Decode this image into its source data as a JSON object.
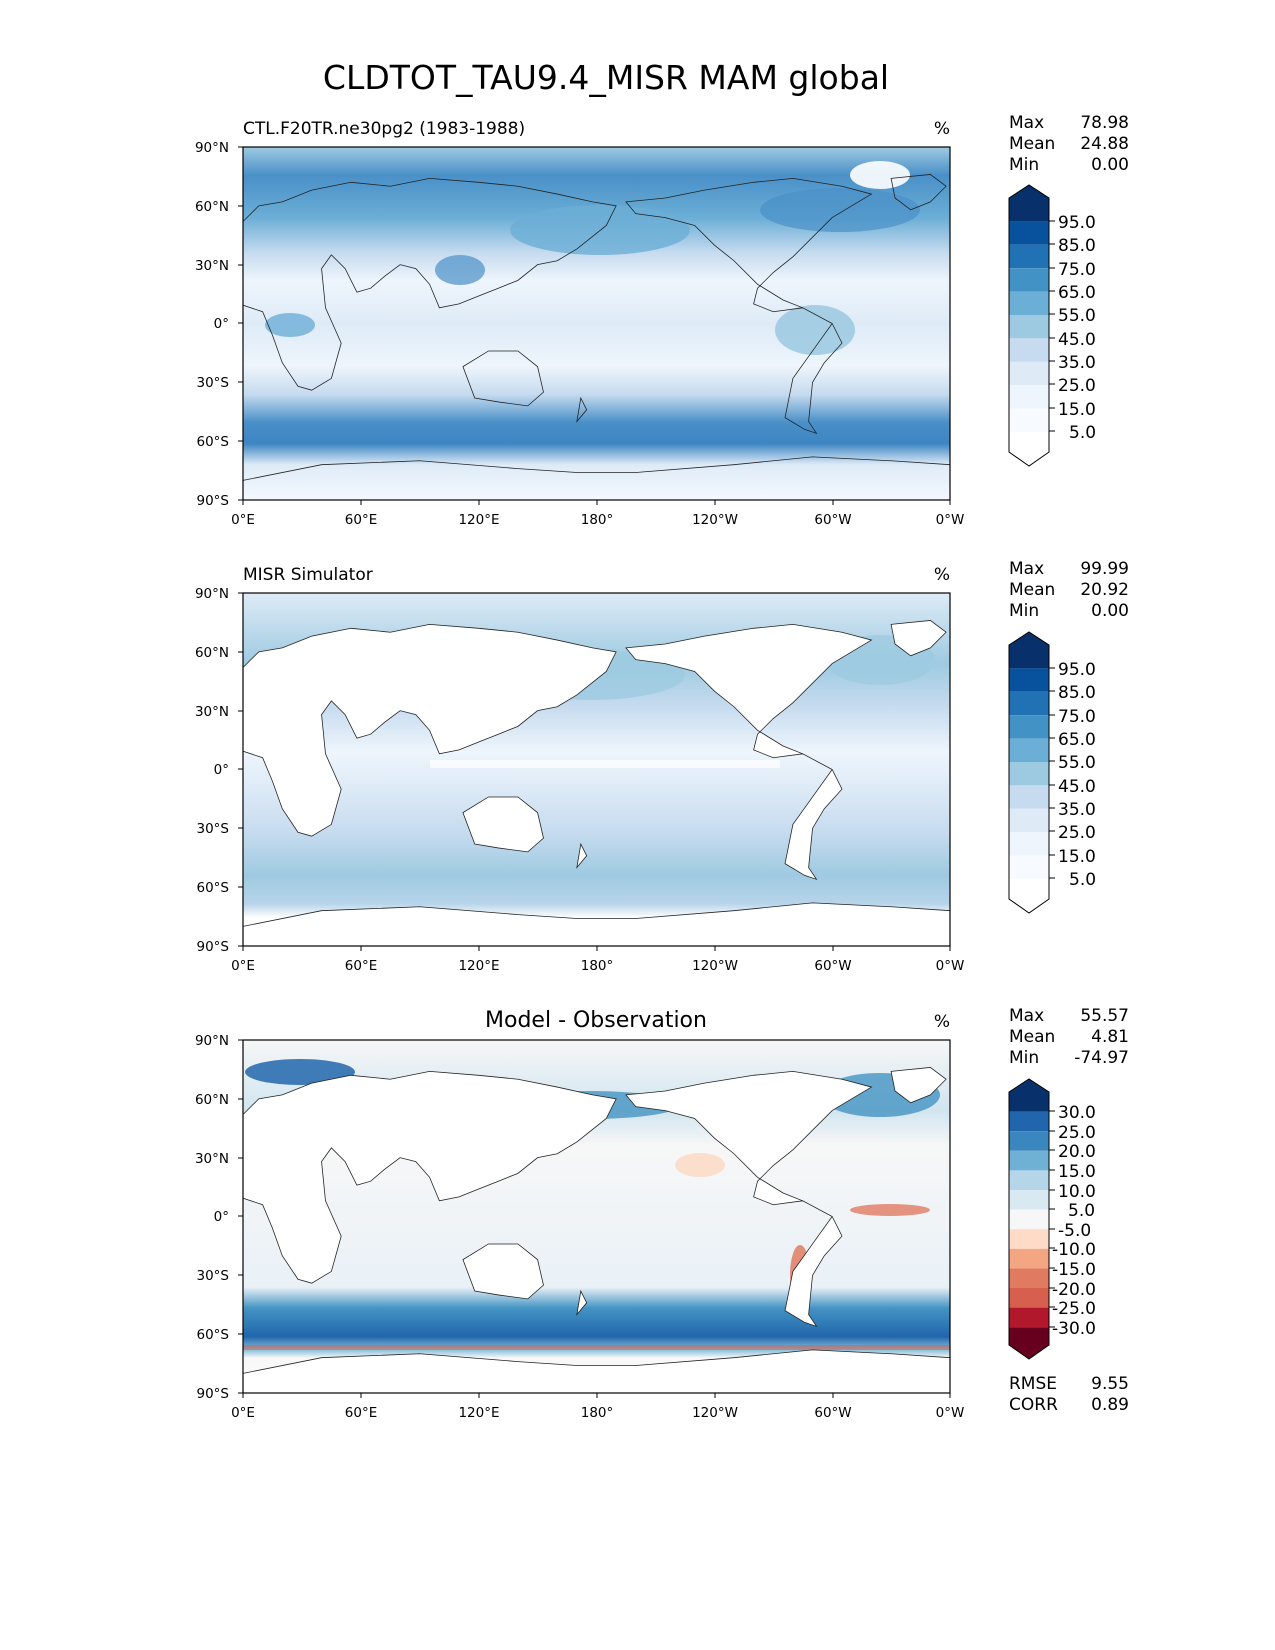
{
  "figure": {
    "title": "CLDTOT_TAU9.4_MISR MAM global"
  },
  "axes": {
    "lat_ticks": [
      "90°N",
      "60°N",
      "30°N",
      "0°",
      "30°S",
      "60°S",
      "90°S"
    ],
    "lon_ticks": [
      "0°E",
      "60°E",
      "120°E",
      "180°",
      "120°W",
      "60°W",
      "0°W"
    ]
  },
  "panels": [
    {
      "id": "model",
      "left_title": "CTL.F20TR.ne30pg2 (1983-1988)",
      "center_title": "",
      "units": "%",
      "stats": [
        {
          "label": "Max",
          "value": "78.98"
        },
        {
          "label": "Mean",
          "value": "24.88"
        },
        {
          "label": "Min",
          "value": "0.00"
        }
      ],
      "colorbar_labels": [
        "95.0",
        "85.0",
        "75.0",
        "65.0",
        "55.0",
        "45.0",
        "35.0",
        "25.0",
        "15.0",
        "5.0"
      ],
      "colorbar_colors": [
        "#08306b",
        "#08519c",
        "#2171b5",
        "#4292c6",
        "#6baed6",
        "#9ecae1",
        "#c6dbef",
        "#deebf7",
        "#eef5fc",
        "#ffffff"
      ],
      "extra_stats": []
    },
    {
      "id": "obs",
      "left_title": "MISR Simulator",
      "center_title": "",
      "units": "%",
      "stats": [
        {
          "label": "Max",
          "value": "99.99"
        },
        {
          "label": "Mean",
          "value": "20.92"
        },
        {
          "label": "Min",
          "value": "0.00"
        }
      ],
      "colorbar_labels": [
        "95.0",
        "85.0",
        "75.0",
        "65.0",
        "55.0",
        "45.0",
        "35.0",
        "25.0",
        "15.0",
        "5.0"
      ],
      "colorbar_colors": [
        "#08306b",
        "#08519c",
        "#2171b5",
        "#4292c6",
        "#6baed6",
        "#9ecae1",
        "#c6dbef",
        "#deebf7",
        "#eef5fc",
        "#ffffff"
      ],
      "extra_stats": []
    },
    {
      "id": "diff",
      "left_title": "",
      "center_title": "Model - Observation",
      "units": "%",
      "stats": [
        {
          "label": "Max",
          "value": "55.57"
        },
        {
          "label": "Mean",
          "value": "4.81"
        },
        {
          "label": "Min",
          "value": "-74.97"
        }
      ],
      "colorbar_labels": [
        "30.0",
        "25.0",
        "20.0",
        "15.0",
        "10.0",
        "5.0",
        "-5.0",
        "-10.0",
        "-15.0",
        "-20.0",
        "-25.0",
        "-30.0"
      ],
      "colorbar_colors": [
        "#08306b",
        "#2166ac",
        "#4393c3",
        "#92c5de",
        "#d1e5f0",
        "#f7f7f7",
        "#fddbc7",
        "#f4a582",
        "#e07b62",
        "#d6604d",
        "#b2182b",
        "#67001f"
      ],
      "extra_stats": [
        {
          "label": "RMSE",
          "value": "9.55"
        },
        {
          "label": "CORR",
          "value": "0.89"
        }
      ]
    }
  ]
}
